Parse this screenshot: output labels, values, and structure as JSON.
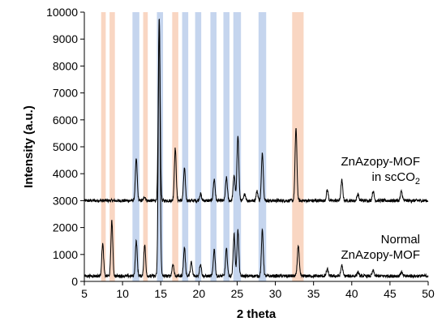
{
  "chart_data": {
    "type": "line",
    "xlabel": "2 theta",
    "ylabel": "Intensity (a.u.)",
    "xlim": [
      5,
      50
    ],
    "ylim": [
      0,
      10000
    ],
    "x_ticks": [
      5,
      10,
      15,
      20,
      25,
      30,
      35,
      40,
      45,
      50
    ],
    "y_ticks": [
      0,
      1000,
      2000,
      3000,
      4000,
      5000,
      6000,
      7000,
      8000,
      9000,
      10000
    ],
    "x_tick_labels": [
      "5",
      "10",
      "15",
      "20",
      "25",
      "30",
      "35",
      "40",
      "45",
      "50"
    ],
    "y_tick_labels": [
      "0",
      "1000",
      "2000",
      "3000",
      "4000",
      "5000",
      "6000",
      "7000",
      "8000",
      "9000",
      "10000"
    ],
    "grid": false,
    "colors": {
      "line": "#000000",
      "band_blue": "#c5d5ee",
      "band_orange": "#f9d6c2"
    },
    "bands": [
      {
        "from": 7.2,
        "to": 7.8,
        "color": "orange"
      },
      {
        "from": 8.3,
        "to": 9.0,
        "color": "orange"
      },
      {
        "from": 11.3,
        "to": 12.2,
        "color": "blue"
      },
      {
        "from": 12.7,
        "to": 13.3,
        "color": "orange"
      },
      {
        "from": 14.5,
        "to": 15.3,
        "color": "blue"
      },
      {
        "from": 16.5,
        "to": 17.3,
        "color": "orange"
      },
      {
        "from": 17.8,
        "to": 18.6,
        "color": "blue"
      },
      {
        "from": 19.5,
        "to": 20.3,
        "color": "blue"
      },
      {
        "from": 21.5,
        "to": 22.3,
        "color": "blue"
      },
      {
        "from": 23.2,
        "to": 24.0,
        "color": "blue"
      },
      {
        "from": 24.5,
        "to": 25.5,
        "color": "blue"
      },
      {
        "from": 27.8,
        "to": 28.8,
        "color": "blue"
      },
      {
        "from": 32.2,
        "to": 33.7,
        "color": "orange"
      }
    ],
    "series": [
      {
        "baseline": 3000,
        "peaks": [
          {
            "x": 11.8,
            "y": 4550
          },
          {
            "x": 12.9,
            "y": 3150
          },
          {
            "x": 14.8,
            "y": 9800
          },
          {
            "x": 16.9,
            "y": 4950
          },
          {
            "x": 18.1,
            "y": 4200
          },
          {
            "x": 20.2,
            "y": 3250
          },
          {
            "x": 22.0,
            "y": 3800
          },
          {
            "x": 23.6,
            "y": 3850
          },
          {
            "x": 24.6,
            "y": 3950
          },
          {
            "x": 25.1,
            "y": 5450
          },
          {
            "x": 26.0,
            "y": 3250
          },
          {
            "x": 27.6,
            "y": 3350
          },
          {
            "x": 28.3,
            "y": 4800
          },
          {
            "x": 32.7,
            "y": 5700
          },
          {
            "x": 36.8,
            "y": 3400
          },
          {
            "x": 38.7,
            "y": 3750
          },
          {
            "x": 40.8,
            "y": 3250
          },
          {
            "x": 42.8,
            "y": 3350
          },
          {
            "x": 46.5,
            "y": 3350
          }
        ]
      },
      {
        "baseline": 200,
        "peaks": [
          {
            "x": 7.4,
            "y": 1400
          },
          {
            "x": 8.6,
            "y": 2250
          },
          {
            "x": 11.8,
            "y": 1500
          },
          {
            "x": 12.9,
            "y": 1350
          },
          {
            "x": 14.8,
            "y": 9600
          },
          {
            "x": 16.6,
            "y": 650
          },
          {
            "x": 18.1,
            "y": 1250
          },
          {
            "x": 19.0,
            "y": 700
          },
          {
            "x": 20.2,
            "y": 650
          },
          {
            "x": 22.0,
            "y": 1200
          },
          {
            "x": 23.6,
            "y": 1200
          },
          {
            "x": 24.6,
            "y": 1750
          },
          {
            "x": 25.1,
            "y": 1900
          },
          {
            "x": 28.3,
            "y": 1900
          },
          {
            "x": 33.0,
            "y": 1350
          },
          {
            "x": 36.8,
            "y": 450
          },
          {
            "x": 38.7,
            "y": 600
          },
          {
            "x": 40.8,
            "y": 350
          },
          {
            "x": 42.8,
            "y": 400
          },
          {
            "x": 46.5,
            "y": 350
          }
        ]
      }
    ],
    "annotations": {
      "scco2_line1": "ZnAzopy-MOF",
      "scco2_line2_main": "in scCO",
      "scco2_line2_sub": "2",
      "normal_line1": "Normal",
      "normal_line2": "ZnAzopy-MOF"
    }
  }
}
